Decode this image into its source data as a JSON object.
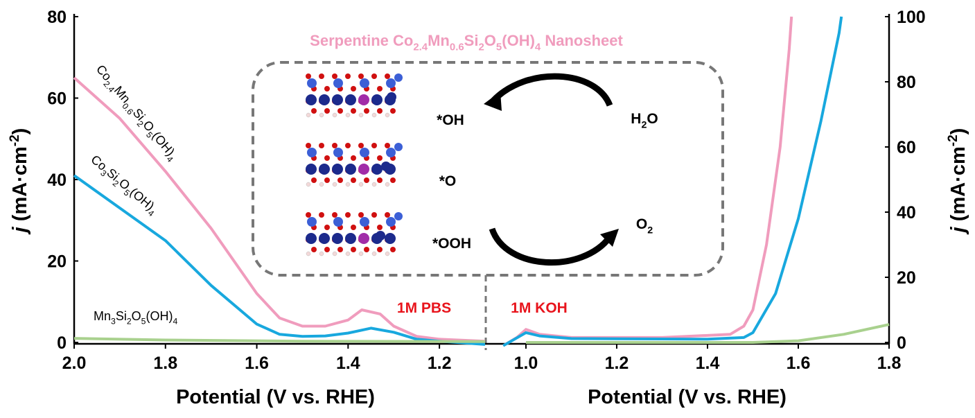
{
  "chart_data": {
    "type": "line",
    "title": [
      "Serpentine Co",
      "2.4",
      "Mn",
      "0.6",
      "Si",
      "2",
      "O",
      "5",
      "(OH)",
      "4",
      " Nanosheet"
    ],
    "title_color": "#f09cbd",
    "ylabel": [
      "j",
      " (mA·cm",
      "-2",
      ")"
    ],
    "y2label": [
      "j",
      " (mA·cm",
      "-2",
      ")"
    ],
    "ylim": [
      0,
      80
    ],
    "yticks": [
      0,
      20,
      40,
      60,
      80
    ],
    "y2lim": [
      0,
      100
    ],
    "y2ticks": [
      0,
      20,
      40,
      60,
      80,
      100
    ],
    "panels": [
      {
        "xlabel": "Potential (V vs. RHE)",
        "xlim": [
          2.0,
          1.1
        ],
        "xticks": [
          {
            "value": 2.0,
            "label": "2.0"
          },
          {
            "value": 1.8,
            "label": "1.8"
          },
          {
            "value": 1.6,
            "label": "1.6"
          },
          {
            "value": 1.4,
            "label": "1.4"
          },
          {
            "value": 1.2,
            "label": "1.2"
          }
        ],
        "annotation": "1M PBS",
        "annotation_color": "#e8141c",
        "series": [
          {
            "label": [
              "Co",
              "2.4",
              "Mn",
              "0.6",
              "Si",
              "2",
              "O",
              "5",
              "(OH)",
              "4"
            ],
            "color": "#f09cbd",
            "axis": "y",
            "x": [
              2.0,
              1.9,
              1.8,
              1.7,
              1.6,
              1.55,
              1.5,
              1.45,
              1.4,
              1.37,
              1.33,
              1.3,
              1.25,
              1.2,
              1.1
            ],
            "values": [
              65,
              55,
              42,
              28,
              12,
              6,
              4,
              4,
              5.5,
              8,
              7,
              4,
              1.5,
              0.8,
              0.3
            ]
          },
          {
            "label": [
              "Co",
              "3",
              "Si",
              "2",
              "O",
              "5",
              "(OH)",
              "4"
            ],
            "color": "#18a8de",
            "axis": "y",
            "x": [
              2.0,
              1.9,
              1.8,
              1.7,
              1.6,
              1.55,
              1.5,
              1.45,
              1.4,
              1.35,
              1.3,
              1.25,
              1.2,
              1.1
            ],
            "values": [
              41,
              33,
              25,
              14,
              4.5,
              2,
              1.5,
              1.6,
              2.3,
              3.5,
              2.5,
              0.8,
              0.3,
              -0.5
            ]
          },
          {
            "label": [
              "Mn",
              "3",
              "Si",
              "2",
              "O",
              "5",
              "(OH)",
              "4"
            ],
            "color": "#a9d18e",
            "axis": "y",
            "x": [
              2.0,
              1.8,
              1.5,
              1.1
            ],
            "values": [
              1,
              0.6,
              0.3,
              0.2
            ]
          }
        ]
      },
      {
        "xlabel": "Potential (V vs. RHE)",
        "xlim": [
          0.91,
          1.8
        ],
        "xticks": [
          {
            "value": 1.0,
            "label": "1.0"
          },
          {
            "value": 1.2,
            "label": "1.2"
          },
          {
            "value": 1.4,
            "label": "1.4"
          },
          {
            "value": 1.6,
            "label": "1.6"
          },
          {
            "value": 1.8,
            "label": "1.8"
          }
        ],
        "annotation": "1M KOH",
        "annotation_color": "#e8141c",
        "series": [
          {
            "color": "#f09cbd",
            "axis": "y2",
            "x": [
              0.95,
              0.98,
              1.0,
              1.03,
              1.1,
              1.3,
              1.45,
              1.48,
              1.5,
              1.53,
              1.56,
              1.58,
              1.585
            ],
            "values": [
              -1,
              1.5,
              4,
              2.5,
              1.5,
              1.5,
              2.5,
              5,
              10,
              30,
              60,
              90,
              100
            ]
          },
          {
            "color": "#18a8de",
            "axis": "y2",
            "x": [
              0.95,
              1.0,
              1.03,
              1.1,
              1.4,
              1.48,
              1.5,
              1.55,
              1.6,
              1.65,
              1.69,
              1.695
            ],
            "values": [
              -1,
              3,
              2,
              1.2,
              1,
              1.5,
              3,
              15,
              38,
              68,
              95,
              100
            ]
          },
          {
            "color": "#a9d18e",
            "axis": "y2",
            "x": [
              1.0,
              1.5,
              1.6,
              1.7,
              1.8
            ],
            "values": [
              0,
              0,
              0.5,
              2.5,
              5.5
            ]
          }
        ]
      }
    ],
    "inset": {
      "oh": "*OH",
      "o": "*O",
      "ooh": "*OOH",
      "h2o": [
        "H",
        "2",
        "O"
      ],
      "o2": [
        "O",
        "2"
      ]
    }
  }
}
